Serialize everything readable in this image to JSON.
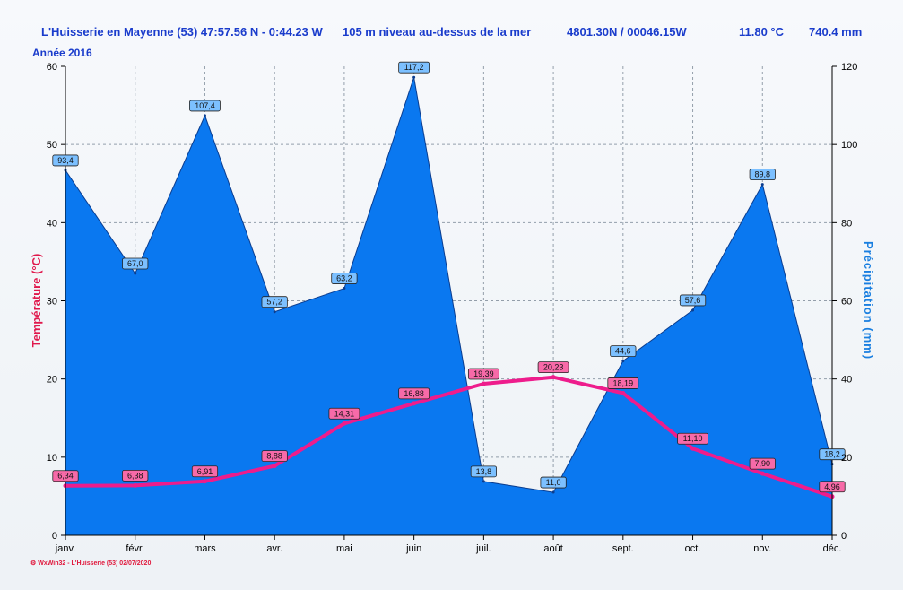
{
  "header": {
    "station": "L'Huisserie en Mayenne (53) 47:57.56 N - 0:44.23 W",
    "altitude": "105 m niveau au-dessus de la mer",
    "coords": "4801.30N / 00046.15W",
    "avg_temp": "11.80 °C",
    "total_precip": "740.4 mm"
  },
  "subtitle": "Année  2016",
  "footer": "WxWin32 - L'Huisserie (53) 02/07/2020",
  "colors": {
    "precip": "#0a78f0",
    "temp": "#ee1c8c",
    "axis_left": "#e0184c",
    "axis_right": "#1a7fe0",
    "header": "#1a3ccc"
  },
  "chart_data": {
    "type": "area",
    "categories": [
      "janv.",
      "févr.",
      "mars",
      "avr.",
      "mai",
      "juin",
      "juil.",
      "août",
      "sept.",
      "oct.",
      "nov.",
      "déc."
    ],
    "series": [
      {
        "name": "Précipitation",
        "axis": "right",
        "type": "area",
        "values": [
          93.4,
          67.0,
          107.4,
          57.2,
          63.2,
          117.2,
          13.8,
          11.0,
          44.6,
          57.6,
          89.8,
          18.2
        ],
        "labels": [
          "93,4",
          "67,0",
          "107,4",
          "57,2",
          "63,2",
          "117,2",
          "13,8",
          "11,0",
          "44,6",
          "57,6",
          "89,8",
          "18,2"
        ]
      },
      {
        "name": "Température",
        "axis": "left",
        "type": "line",
        "values": [
          6.34,
          6.38,
          6.91,
          8.88,
          14.31,
          16.88,
          19.39,
          20.23,
          18.19,
          11.1,
          7.9,
          4.96
        ],
        "labels": [
          "6,34",
          "6,38",
          "6,91",
          "8,88",
          "14,31",
          "16,88",
          "19,39",
          "20,23",
          "18,19",
          "11,10",
          "7,90",
          "4,96"
        ]
      }
    ],
    "ylabel_left": "Température  (°C)",
    "ylabel_right": "Précipitation  (mm)",
    "ylim_left": [
      0,
      60
    ],
    "ylim_right": [
      0,
      120
    ],
    "yticks_left": [
      "0",
      "10",
      "20",
      "30",
      "40",
      "50",
      "60"
    ],
    "yticks_right": [
      "0",
      "20",
      "40",
      "60",
      "80",
      "100",
      "120"
    ],
    "grid": true
  }
}
